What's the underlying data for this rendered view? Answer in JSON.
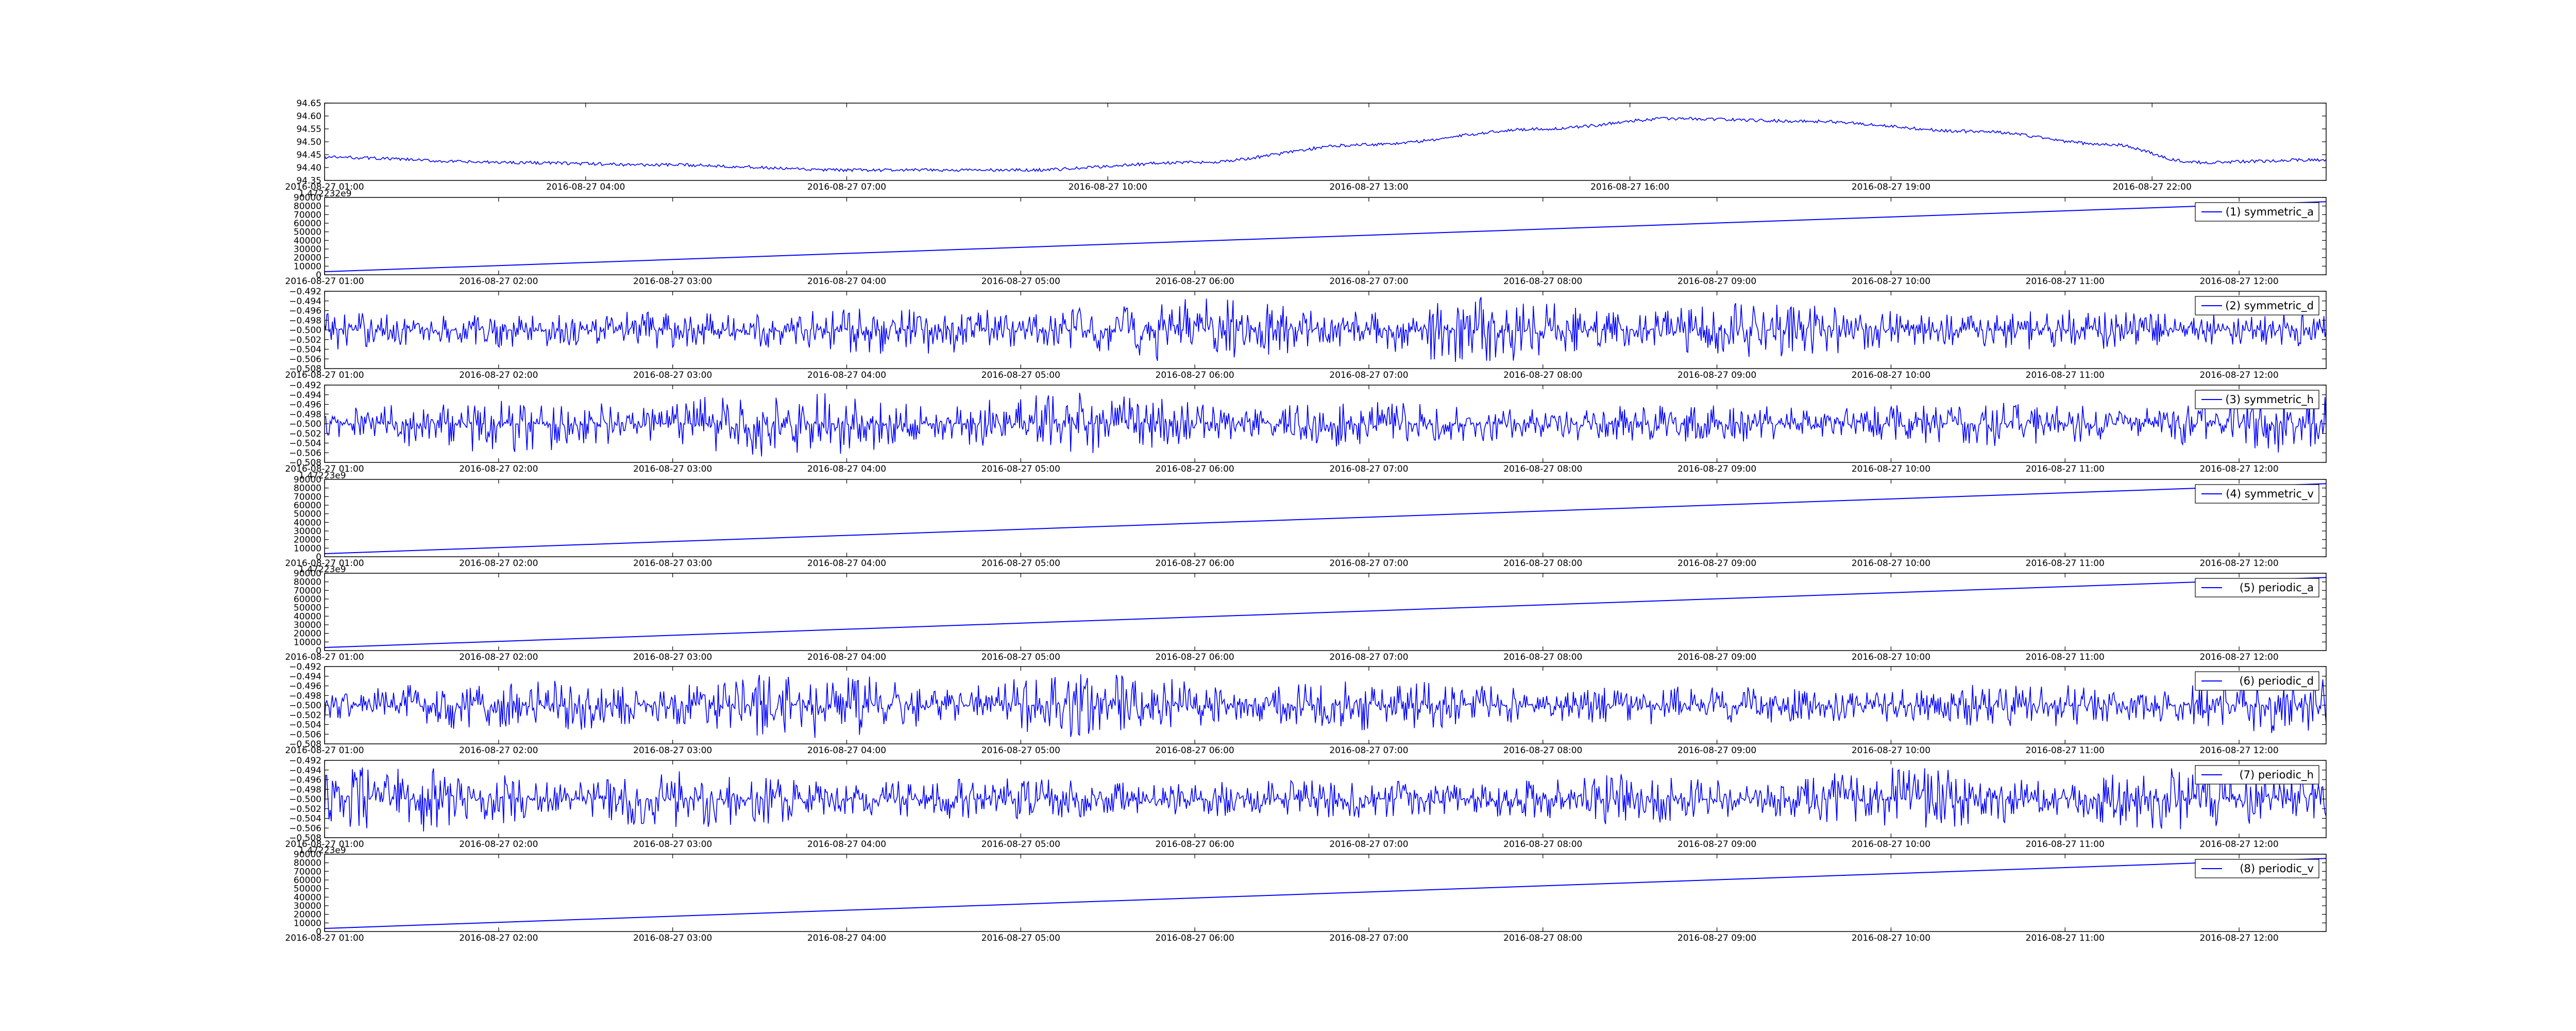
{
  "chart_data": [
    {
      "type": "line",
      "signal": "drift",
      "legend": "",
      "offset_text": "",
      "ylim": [
        94.35,
        94.65
      ],
      "yticks": [
        94.35,
        94.4,
        94.45,
        94.5,
        94.55,
        94.6,
        94.65
      ],
      "ytick_labels": [
        "94.35",
        "94.40",
        "94.45",
        "94.50",
        "94.55",
        "94.60",
        "94.65"
      ],
      "xlim": [
        "2016-08-27 01:00",
        "2016-08-28 00:00"
      ],
      "xticks": [
        "2016-08-27 01:00",
        "2016-08-27 04:00",
        "2016-08-27 07:00",
        "2016-08-27 10:00",
        "2016-08-27 13:00",
        "2016-08-27 16:00",
        "2016-08-27 19:00",
        "2016-08-27 22:00"
      ],
      "xtick_labels": [
        "2016-08-27 01:00",
        "2016-08-27 04:00",
        "2016-08-27 07:00",
        "2016-08-27 10:00",
        "2016-08-27 13:00",
        "2016-08-27 16:00",
        "2016-08-27 19:00",
        "2016-08-27 22:00"
      ],
      "x": [
        "2016-08-27 01:00",
        "2016-08-27 03:00",
        "2016-08-27 05:00",
        "2016-08-27 07:00",
        "2016-08-27 09:00",
        "2016-08-27 11:00",
        "2016-08-27 13:00",
        "2016-08-27 15:00",
        "2016-08-27 16:30",
        "2016-08-27 18:00",
        "2016-08-27 20:00",
        "2016-08-27 21:30",
        "2016-08-27 22:30",
        "2016-08-28 00:00"
      ],
      "y": [
        94.44,
        94.42,
        94.41,
        94.39,
        94.39,
        94.42,
        94.49,
        94.55,
        94.59,
        94.58,
        94.54,
        94.49,
        94.42,
        94.43
      ],
      "grid": false,
      "color": "#0000ff"
    },
    {
      "type": "line",
      "signal": "ramp",
      "legend": "(1) symmetric_a",
      "offset_text": "1.472232e9",
      "ylim": [
        0,
        90000
      ],
      "yticks": [
        0,
        10000,
        20000,
        30000,
        40000,
        50000,
        60000,
        70000,
        80000,
        90000
      ],
      "ytick_labels": [
        "0",
        "10000",
        "20000",
        "30000",
        "40000",
        "50000",
        "60000",
        "70000",
        "80000",
        "90000"
      ],
      "xlim": [
        "2016-08-27 01:00",
        "2016-08-27 12:30"
      ],
      "xticks": [
        "2016-08-27 01:00",
        "2016-08-27 02:00",
        "2016-08-27 03:00",
        "2016-08-27 04:00",
        "2016-08-27 05:00",
        "2016-08-27 06:00",
        "2016-08-27 07:00",
        "2016-08-27 08:00",
        "2016-08-27 09:00",
        "2016-08-27 10:00",
        "2016-08-27 11:00",
        "2016-08-27 12:00"
      ],
      "xtick_labels": [
        "2016-08-27 01:00",
        "2016-08-27 02:00",
        "2016-08-27 03:00",
        "2016-08-27 04:00",
        "2016-08-27 05:00",
        "2016-08-27 06:00",
        "2016-08-27 07:00",
        "2016-08-27 08:00",
        "2016-08-27 09:00",
        "2016-08-27 10:00",
        "2016-08-27 11:00",
        "2016-08-27 12:00"
      ],
      "x": [
        "2016-08-27 01:00",
        "2016-08-27 12:30"
      ],
      "y": [
        3600,
        85000
      ],
      "grid": false,
      "color": "#0000ff"
    },
    {
      "type": "line",
      "signal": "noise",
      "legend": "(2) symmetric_d",
      "offset_text": "",
      "ylim": [
        -0.508,
        -0.492
      ],
      "yticks": [
        -0.508,
        -0.506,
        -0.504,
        -0.502,
        -0.5,
        -0.498,
        -0.496,
        -0.494,
        -0.492
      ],
      "ytick_labels": [
        "−0.508",
        "−0.506",
        "−0.504",
        "−0.502",
        "−0.500",
        "−0.498",
        "−0.496",
        "−0.494",
        "−0.492"
      ],
      "xlim": [
        "2016-08-27 01:00",
        "2016-08-27 12:30"
      ],
      "xticks": [
        "2016-08-27 01:00",
        "2016-08-27 02:00",
        "2016-08-27 03:00",
        "2016-08-27 04:00",
        "2016-08-27 05:00",
        "2016-08-27 06:00",
        "2016-08-27 07:00",
        "2016-08-27 08:00",
        "2016-08-27 09:00",
        "2016-08-27 10:00",
        "2016-08-27 11:00",
        "2016-08-27 12:00"
      ],
      "xtick_labels": [
        "2016-08-27 01:00",
        "2016-08-27 02:00",
        "2016-08-27 03:00",
        "2016-08-27 04:00",
        "2016-08-27 05:00",
        "2016-08-27 06:00",
        "2016-08-27 07:00",
        "2016-08-27 08:00",
        "2016-08-27 09:00",
        "2016-08-27 10:00",
        "2016-08-27 11:00",
        "2016-08-27 12:00"
      ],
      "center": -0.5,
      "spread": 0.007,
      "grid": false,
      "color": "#0000ff"
    },
    {
      "type": "line",
      "signal": "noise",
      "legend": "(3) symmetric_h",
      "offset_text": "",
      "ylim": [
        -0.508,
        -0.492
      ],
      "yticks": [
        -0.508,
        -0.506,
        -0.504,
        -0.502,
        -0.5,
        -0.498,
        -0.496,
        -0.494,
        -0.492
      ],
      "ytick_labels": [
        "−0.508",
        "−0.506",
        "−0.504",
        "−0.502",
        "−0.500",
        "−0.498",
        "−0.496",
        "−0.494",
        "−0.492"
      ],
      "xlim": [
        "2016-08-27 01:00",
        "2016-08-27 12:30"
      ],
      "xticks": [
        "2016-08-27 01:00",
        "2016-08-27 02:00",
        "2016-08-27 03:00",
        "2016-08-27 04:00",
        "2016-08-27 05:00",
        "2016-08-27 06:00",
        "2016-08-27 07:00",
        "2016-08-27 08:00",
        "2016-08-27 09:00",
        "2016-08-27 10:00",
        "2016-08-27 11:00",
        "2016-08-27 12:00"
      ],
      "xtick_labels": [
        "2016-08-27 01:00",
        "2016-08-27 02:00",
        "2016-08-27 03:00",
        "2016-08-27 04:00",
        "2016-08-27 05:00",
        "2016-08-27 06:00",
        "2016-08-27 07:00",
        "2016-08-27 08:00",
        "2016-08-27 09:00",
        "2016-08-27 10:00",
        "2016-08-27 11:00",
        "2016-08-27 12:00"
      ],
      "center": -0.5,
      "spread": 0.007,
      "grid": false,
      "color": "#0000ff"
    },
    {
      "type": "line",
      "signal": "ramp",
      "legend": "(4) symmetric_v",
      "offset_text": "1.47223e9",
      "ylim": [
        0,
        90000
      ],
      "yticks": [
        0,
        10000,
        20000,
        30000,
        40000,
        50000,
        60000,
        70000,
        80000,
        90000
      ],
      "ytick_labels": [
        "0",
        "10000",
        "20000",
        "30000",
        "40000",
        "50000",
        "60000",
        "70000",
        "80000",
        "90000"
      ],
      "xlim": [
        "2016-08-27 01:00",
        "2016-08-27 12:30"
      ],
      "xticks": [
        "2016-08-27 01:00",
        "2016-08-27 02:00",
        "2016-08-27 03:00",
        "2016-08-27 04:00",
        "2016-08-27 05:00",
        "2016-08-27 06:00",
        "2016-08-27 07:00",
        "2016-08-27 08:00",
        "2016-08-27 09:00",
        "2016-08-27 10:00",
        "2016-08-27 11:00",
        "2016-08-27 12:00"
      ],
      "xtick_labels": [
        "2016-08-27 01:00",
        "2016-08-27 02:00",
        "2016-08-27 03:00",
        "2016-08-27 04:00",
        "2016-08-27 05:00",
        "2016-08-27 06:00",
        "2016-08-27 07:00",
        "2016-08-27 08:00",
        "2016-08-27 09:00",
        "2016-08-27 10:00",
        "2016-08-27 11:00",
        "2016-08-27 12:00"
      ],
      "x": [
        "2016-08-27 01:00",
        "2016-08-27 12:30"
      ],
      "y": [
        3600,
        85000
      ],
      "grid": false,
      "color": "#0000ff"
    },
    {
      "type": "line",
      "signal": "ramp",
      "legend": "(5) periodic_a",
      "offset_text": "1.47223e9",
      "ylim": [
        0,
        90000
      ],
      "yticks": [
        0,
        10000,
        20000,
        30000,
        40000,
        50000,
        60000,
        70000,
        80000,
        90000
      ],
      "ytick_labels": [
        "0",
        "10000",
        "20000",
        "30000",
        "40000",
        "50000",
        "60000",
        "70000",
        "80000",
        "90000"
      ],
      "xlim": [
        "2016-08-27 01:00",
        "2016-08-27 12:30"
      ],
      "xticks": [
        "2016-08-27 01:00",
        "2016-08-27 02:00",
        "2016-08-27 03:00",
        "2016-08-27 04:00",
        "2016-08-27 05:00",
        "2016-08-27 06:00",
        "2016-08-27 07:00",
        "2016-08-27 08:00",
        "2016-08-27 09:00",
        "2016-08-27 10:00",
        "2016-08-27 11:00",
        "2016-08-27 12:00"
      ],
      "xtick_labels": [
        "2016-08-27 01:00",
        "2016-08-27 02:00",
        "2016-08-27 03:00",
        "2016-08-27 04:00",
        "2016-08-27 05:00",
        "2016-08-27 06:00",
        "2016-08-27 07:00",
        "2016-08-27 08:00",
        "2016-08-27 09:00",
        "2016-08-27 10:00",
        "2016-08-27 11:00",
        "2016-08-27 12:00"
      ],
      "x": [
        "2016-08-27 01:00",
        "2016-08-27 12:30"
      ],
      "y": [
        3600,
        85000
      ],
      "grid": false,
      "color": "#0000ff"
    },
    {
      "type": "line",
      "signal": "noise",
      "legend": "(6) periodic_d",
      "offset_text": "",
      "ylim": [
        -0.508,
        -0.492
      ],
      "yticks": [
        -0.508,
        -0.506,
        -0.504,
        -0.502,
        -0.5,
        -0.498,
        -0.496,
        -0.494,
        -0.492
      ],
      "ytick_labels": [
        "−0.508",
        "−0.506",
        "−0.504",
        "−0.502",
        "−0.500",
        "−0.498",
        "−0.496",
        "−0.494",
        "−0.492"
      ],
      "xlim": [
        "2016-08-27 01:00",
        "2016-08-27 12:30"
      ],
      "xticks": [
        "2016-08-27 01:00",
        "2016-08-27 02:00",
        "2016-08-27 03:00",
        "2016-08-27 04:00",
        "2016-08-27 05:00",
        "2016-08-27 06:00",
        "2016-08-27 07:00",
        "2016-08-27 08:00",
        "2016-08-27 09:00",
        "2016-08-27 10:00",
        "2016-08-27 11:00",
        "2016-08-27 12:00"
      ],
      "xtick_labels": [
        "2016-08-27 01:00",
        "2016-08-27 02:00",
        "2016-08-27 03:00",
        "2016-08-27 04:00",
        "2016-08-27 05:00",
        "2016-08-27 06:00",
        "2016-08-27 07:00",
        "2016-08-27 08:00",
        "2016-08-27 09:00",
        "2016-08-27 10:00",
        "2016-08-27 11:00",
        "2016-08-27 12:00"
      ],
      "center": -0.5,
      "spread": 0.007,
      "grid": false,
      "color": "#0000ff"
    },
    {
      "type": "line",
      "signal": "noise",
      "legend": "(7) periodic_h",
      "offset_text": "",
      "ylim": [
        -0.508,
        -0.492
      ],
      "yticks": [
        -0.508,
        -0.506,
        -0.504,
        -0.502,
        -0.5,
        -0.498,
        -0.496,
        -0.494,
        -0.492
      ],
      "ytick_labels": [
        "−0.508",
        "−0.506",
        "−0.504",
        "−0.502",
        "−0.500",
        "−0.498",
        "−0.496",
        "−0.494",
        "−0.492"
      ],
      "xlim": [
        "2016-08-27 01:00",
        "2016-08-27 12:30"
      ],
      "xticks": [
        "2016-08-27 01:00",
        "2016-08-27 02:00",
        "2016-08-27 03:00",
        "2016-08-27 04:00",
        "2016-08-27 05:00",
        "2016-08-27 06:00",
        "2016-08-27 07:00",
        "2016-08-27 08:00",
        "2016-08-27 09:00",
        "2016-08-27 10:00",
        "2016-08-27 11:00",
        "2016-08-27 12:00"
      ],
      "xtick_labels": [
        "2016-08-27 01:00",
        "2016-08-27 02:00",
        "2016-08-27 03:00",
        "2016-08-27 04:00",
        "2016-08-27 05:00",
        "2016-08-27 06:00",
        "2016-08-27 07:00",
        "2016-08-27 08:00",
        "2016-08-27 09:00",
        "2016-08-27 10:00",
        "2016-08-27 11:00",
        "2016-08-27 12:00"
      ],
      "center": -0.5,
      "spread": 0.007,
      "grid": false,
      "color": "#0000ff"
    },
    {
      "type": "line",
      "signal": "ramp",
      "legend": "(8) periodic_v",
      "offset_text": "1.47223e9",
      "ylim": [
        0,
        90000
      ],
      "yticks": [
        0,
        10000,
        20000,
        30000,
        40000,
        50000,
        60000,
        70000,
        80000,
        90000
      ],
      "ytick_labels": [
        "0",
        "10000",
        "20000",
        "30000",
        "40000",
        "50000",
        "60000",
        "70000",
        "80000",
        "90000"
      ],
      "xlim": [
        "2016-08-27 01:00",
        "2016-08-27 12:30"
      ],
      "xticks": [
        "2016-08-27 01:00",
        "2016-08-27 02:00",
        "2016-08-27 03:00",
        "2016-08-27 04:00",
        "2016-08-27 05:00",
        "2016-08-27 06:00",
        "2016-08-27 07:00",
        "2016-08-27 08:00",
        "2016-08-27 09:00",
        "2016-08-27 10:00",
        "2016-08-27 11:00",
        "2016-08-27 12:00"
      ],
      "xtick_labels": [
        "2016-08-27 01:00",
        "2016-08-27 02:00",
        "2016-08-27 03:00",
        "2016-08-27 04:00",
        "2016-08-27 05:00",
        "2016-08-27 06:00",
        "2016-08-27 07:00",
        "2016-08-27 08:00",
        "2016-08-27 09:00",
        "2016-08-27 10:00",
        "2016-08-27 11:00",
        "2016-08-27 12:00"
      ],
      "x": [
        "2016-08-27 01:00",
        "2016-08-27 12:30"
      ],
      "y": [
        3600,
        85000
      ],
      "grid": false,
      "color": "#0000ff"
    }
  ]
}
